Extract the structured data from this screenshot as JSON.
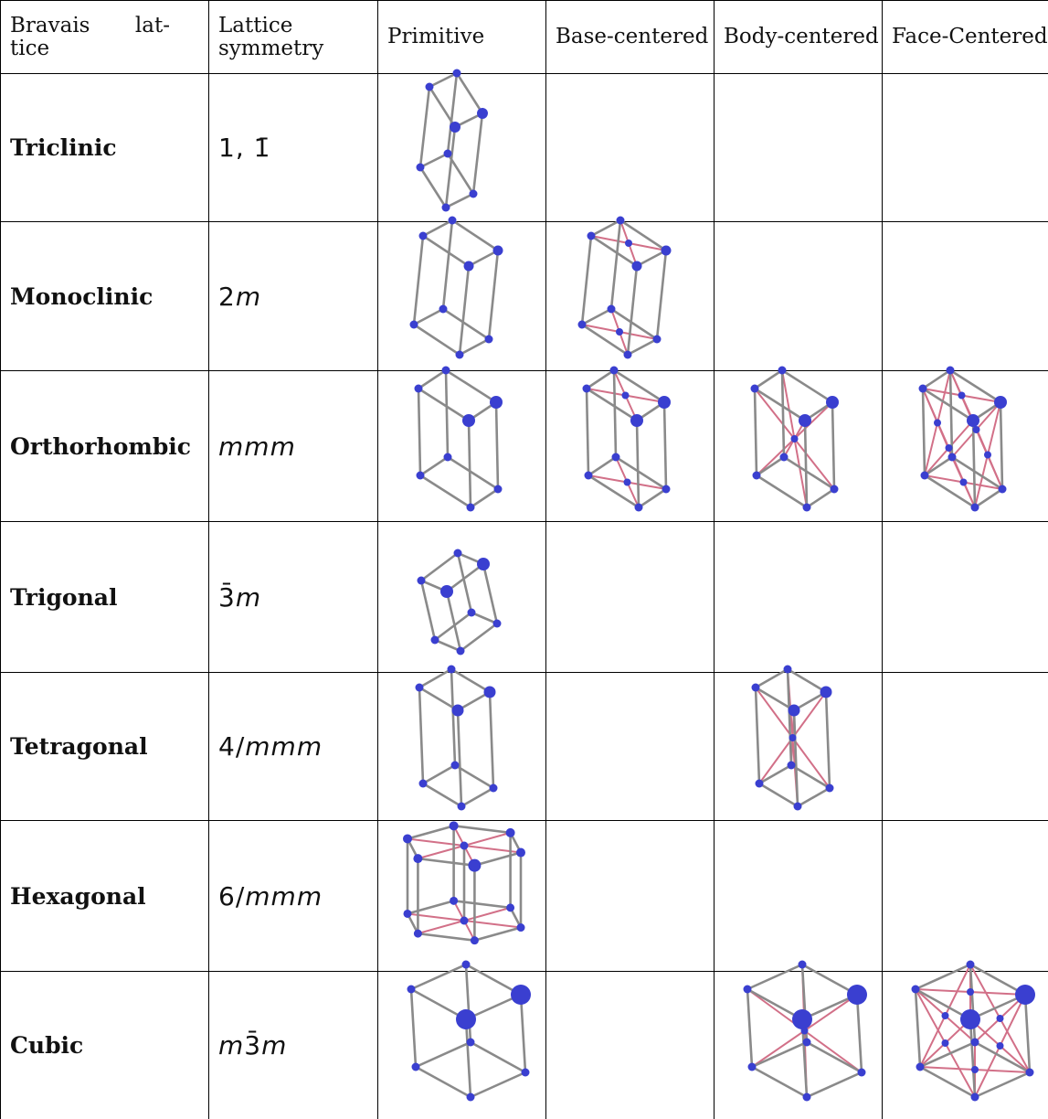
{
  "table": {
    "header": [
      "Bravais lat-tice",
      "Lattice symmetry",
      "Primitive",
      "Base-centered",
      "Body-centered",
      "Face-Centered"
    ],
    "rows": [
      [
        "Triclinic",
        "1, 1̄"
      ],
      [
        "Monoclinic",
        "2m"
      ],
      [
        "Orthorhombic",
        "mmm"
      ],
      [
        "Trigonal",
        "3̄m"
      ],
      [
        "Tetragonal",
        "4/mmm"
      ],
      [
        "Hexagonal",
        "6/mmm"
      ],
      [
        "Cubic",
        "m3̄m"
      ]
    ]
  }
}
